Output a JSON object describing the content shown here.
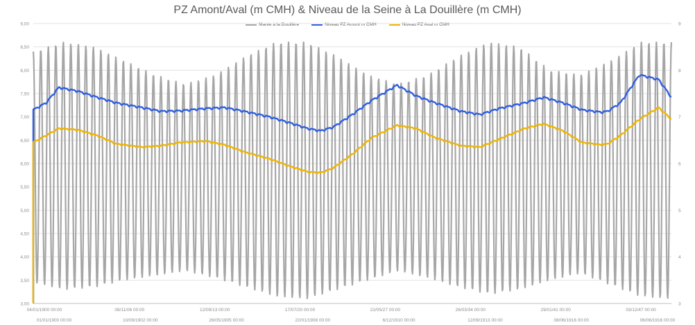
{
  "chart_data": {
    "type": "line",
    "title": "PZ Amont/Aval (m CMH) & Niveau de la Seine à La Douillère (m CMH)",
    "legend_position": "top-center",
    "grid": true,
    "ylim_left": [
      3.0,
      9.0
    ],
    "ylim_right": [
      3,
      9
    ],
    "y_ticks_left": [
      "9,00",
      "8,50",
      "8,00",
      "7,50",
      "7,00",
      "6,50",
      "6,00",
      "5,50",
      "5,00",
      "4,50",
      "4,00",
      "3,50",
      "3,00"
    ],
    "y_ticks_right": [
      "9",
      "8",
      "7",
      "6",
      "5",
      "4",
      "3"
    ],
    "x_tick_labels": [
      {
        "row": 1,
        "label": "04/01/1900 00:00"
      },
      {
        "row": 2,
        "label": "01/01/1900 00:00"
      },
      {
        "row": 1,
        "label": "08/11/06 00:00"
      },
      {
        "row": 2,
        "label": "10/09/1902 00:00"
      },
      {
        "row": 1,
        "label": "12/09/13 00:00"
      },
      {
        "row": 2,
        "label": "26/05/1905 00:00"
      },
      {
        "row": 1,
        "label": "17/07/20 00:00"
      },
      {
        "row": 2,
        "label": "22/01/1908 00:00"
      },
      {
        "row": 1,
        "label": "22/05/27 00:00"
      },
      {
        "row": 2,
        "label": "6/12/1910 00:00"
      },
      {
        "row": 1,
        "label": "26/03/34 00:00"
      },
      {
        "row": 2,
        "label": "12/09/1913 00:00"
      },
      {
        "row": 1,
        "label": "29/01/41 00:00"
      },
      {
        "row": 2,
        "label": "08/06/1916 00:00"
      },
      {
        "row": 1,
        "label": "03/12/47 00:00"
      },
      {
        "row": 2,
        "label": "06/06/1916 00:00"
      }
    ],
    "series": [
      {
        "name": "Marée à la Douillère",
        "color": "#a6a6a6",
        "axis": "right",
        "cycles": 85,
        "peaks": [
          8.4,
          8.6,
          8.5,
          8.2,
          7.9,
          7.7,
          7.9,
          8.3,
          8.6,
          8.6,
          8.3,
          7.9,
          7.7,
          7.9,
          8.3,
          8.6,
          8.5,
          8.0,
          7.9,
          8.2,
          8.6,
          8.6
        ],
        "troughs": [
          3.45,
          3.3,
          3.35,
          3.5,
          3.6,
          3.7,
          3.55,
          3.35,
          3.15,
          3.1,
          3.3,
          3.5,
          3.7,
          3.55,
          3.35,
          3.2,
          3.3,
          3.5,
          3.65,
          3.4,
          3.15,
          3.1
        ]
      },
      {
        "name": "Niveau PZ Amont m CMH",
        "color": "#2e5ee0",
        "axis": "left",
        "x": [
          0,
          0.02,
          0.04,
          0.07,
          0.1,
          0.13,
          0.17,
          0.2,
          0.23,
          0.27,
          0.3,
          0.33,
          0.37,
          0.4,
          0.43,
          0.45,
          0.47,
          0.5,
          0.53,
          0.57,
          0.6,
          0.63,
          0.67,
          0.7,
          0.73,
          0.77,
          0.8,
          0.83,
          0.86,
          0.89,
          0.9,
          0.92,
          0.95,
          0.98,
          1.0
        ],
        "values": [
          7.15,
          7.3,
          7.63,
          7.55,
          7.42,
          7.3,
          7.2,
          7.12,
          7.13,
          7.18,
          7.2,
          7.12,
          7.0,
          6.88,
          6.75,
          6.7,
          6.78,
          7.05,
          7.35,
          7.68,
          7.45,
          7.3,
          7.12,
          7.05,
          7.18,
          7.3,
          7.42,
          7.3,
          7.15,
          7.1,
          7.12,
          7.3,
          7.9,
          7.8,
          7.42
        ]
      },
      {
        "name": "Niveau PZ Aval m CMH",
        "color": "#f0b400",
        "axis": "left",
        "x": [
          0,
          0.02,
          0.04,
          0.07,
          0.1,
          0.13,
          0.17,
          0.2,
          0.23,
          0.27,
          0.3,
          0.33,
          0.37,
          0.4,
          0.43,
          0.45,
          0.47,
          0.5,
          0.53,
          0.57,
          0.6,
          0.63,
          0.67,
          0.7,
          0.73,
          0.77,
          0.8,
          0.83,
          0.86,
          0.89,
          0.9,
          0.92,
          0.95,
          0.98,
          1.0
        ],
        "values": [
          6.45,
          6.6,
          6.75,
          6.72,
          6.6,
          6.42,
          6.35,
          6.38,
          6.45,
          6.48,
          6.4,
          6.25,
          6.1,
          5.95,
          5.82,
          5.8,
          5.9,
          6.2,
          6.55,
          6.82,
          6.75,
          6.55,
          6.38,
          6.35,
          6.52,
          6.75,
          6.85,
          6.7,
          6.45,
          6.4,
          6.42,
          6.6,
          6.95,
          7.2,
          6.95
        ]
      }
    ]
  }
}
